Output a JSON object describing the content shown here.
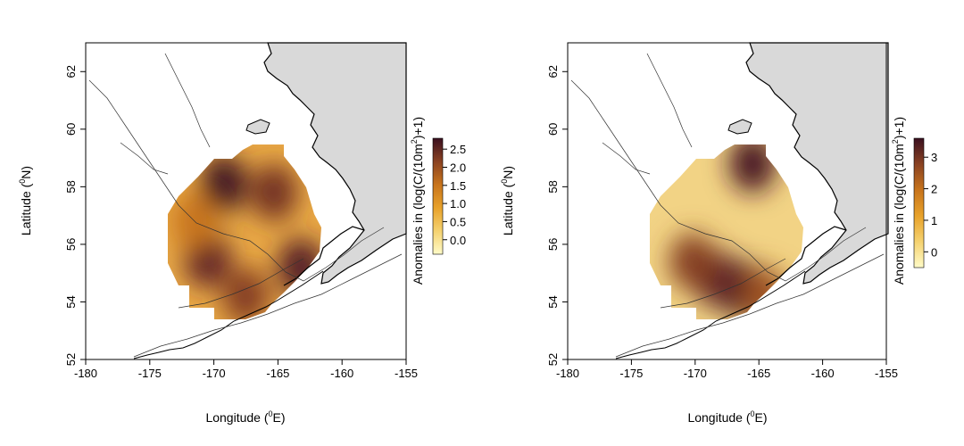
{
  "colors": {
    "land": "#d9d9d9",
    "coast": "#000000",
    "contour": "#333333",
    "scale": [
      "#fffbc8",
      "#f5d270",
      "#e8a22a",
      "#c8741c",
      "#8a4222",
      "#5a1f26",
      "#3a1020"
    ]
  },
  "panels": [
    {
      "id": "left",
      "xlabel": "Longitude (",
      "xlabel_sup": "0",
      "xlabel_end": "E)",
      "ylabel": "Latitude (",
      "ylabel_sup": "0",
      "ylabel_end": "N)",
      "xticks": [
        "-180",
        "-175",
        "-170",
        "-165",
        "-160",
        "-155"
      ],
      "yticks": [
        "52",
        "54",
        "56",
        "58",
        "60",
        "62"
      ],
      "legend_title": "Anomalies in (log(C/(10m",
      "legend_title_sup": "2",
      "legend_title_end": ")+1)",
      "legend_ticks": [
        "0.0",
        "0.5",
        "1.0",
        "1.5",
        "2.0",
        "2.5"
      ]
    },
    {
      "id": "right",
      "xlabel": "Longitude (",
      "xlabel_sup": "0",
      "xlabel_end": "E)",
      "ylabel": "Latitude (",
      "ylabel_sup": "0",
      "ylabel_end": "N)",
      "xticks": [
        "-180",
        "-175",
        "-170",
        "-165",
        "-160",
        "-155"
      ],
      "yticks": [
        "52",
        "54",
        "56",
        "58",
        "60",
        "62"
      ],
      "legend_title": "Anomalies in (log(C/(10m",
      "legend_title_sup": "2",
      "legend_title_end": ")+1)",
      "legend_ticks": [
        "0",
        "1",
        "2",
        "3"
      ]
    }
  ],
  "chart_data": [
    {
      "type": "heatmap",
      "xlim": [
        -180,
        -155
      ],
      "ylim": [
        52,
        63
      ],
      "color_range": [
        -0.4,
        2.8
      ],
      "hotspots": [
        {
          "lon": -169.2,
          "lat": 58.1,
          "value": 2.7
        },
        {
          "lon": -165.3,
          "lat": 57.8,
          "value": 2.0
        },
        {
          "lon": -170.5,
          "lat": 55.5,
          "value": 2.2
        },
        {
          "lon": -163.2,
          "lat": 55.2,
          "value": 2.4
        },
        {
          "lon": -167.5,
          "lat": 54.2,
          "value": 1.8
        },
        {
          "lon": -171.5,
          "lat": 56.8,
          "value": 1.2
        }
      ]
    },
    {
      "type": "heatmap",
      "xlim": [
        -180,
        -155
      ],
      "ylim": [
        52,
        63
      ],
      "color_range": [
        -0.5,
        3.6
      ],
      "hotspots": [
        {
          "lon": -165.5,
          "lat": 58.8,
          "value": 3.3
        },
        {
          "lon": -166.2,
          "lat": 54.4,
          "value": 3.5
        },
        {
          "lon": -168.3,
          "lat": 54.8,
          "value": 2.8
        },
        {
          "lon": -170.2,
          "lat": 55.4,
          "value": 2.3
        },
        {
          "lon": -164.5,
          "lat": 54.2,
          "value": 2.0
        }
      ]
    }
  ]
}
